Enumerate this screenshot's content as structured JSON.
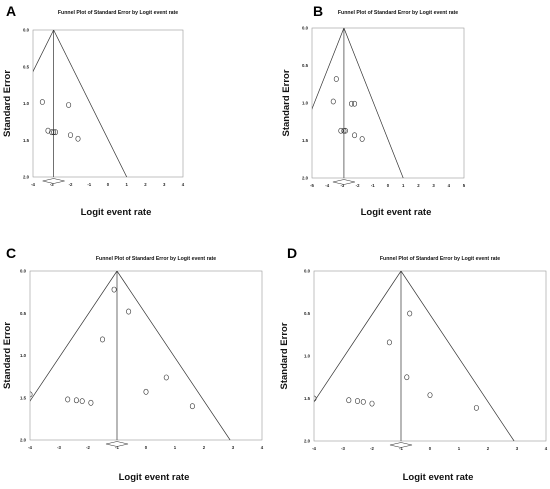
{
  "chart_data": [
    {
      "panel": "A",
      "type": "scatter",
      "title": "Funnel Plot of Standard Error by Logit event rate",
      "xlabel": "Logit event rate",
      "ylabel": "Standard Error",
      "xlim": [
        -4,
        4
      ],
      "ylim": [
        0,
        2
      ],
      "x_ticks": [
        "-4",
        "-3",
        "-2",
        "-1",
        "0",
        "1",
        "2",
        "3",
        "4"
      ],
      "y_ticks": [
        "0.0",
        "0.5",
        "1.0",
        "1.5",
        "2.0"
      ],
      "y_inverted": true,
      "summary_estimate": -2.9,
      "funnel_apex": [
        -2.9,
        0
      ],
      "funnel_left_at_bottom": -6.8,
      "funnel_right_at_bottom": 1.0,
      "points": [
        {
          "x": -3.5,
          "y": 0.98
        },
        {
          "x": -2.1,
          "y": 1.02
        },
        {
          "x": -3.2,
          "y": 1.37
        },
        {
          "x": -3.0,
          "y": 1.39
        },
        {
          "x": -2.9,
          "y": 1.39
        },
        {
          "x": -2.8,
          "y": 1.39
        },
        {
          "x": -2.0,
          "y": 1.43
        },
        {
          "x": -1.6,
          "y": 1.48
        }
      ],
      "grid": false
    },
    {
      "panel": "B",
      "type": "scatter",
      "title": "Funnel Plot of Standard Error by Logit event rate",
      "xlabel": "Logit event rate",
      "ylabel": "Standard Error",
      "xlim": [
        -5,
        5
      ],
      "ylim": [
        0,
        2
      ],
      "x_ticks": [
        "-5",
        "-4",
        "-3",
        "-2",
        "-1",
        "0",
        "1",
        "2",
        "3",
        "4",
        "5"
      ],
      "y_ticks": [
        "0.0",
        "0.5",
        "1.0",
        "1.5",
        "2.0"
      ],
      "y_inverted": true,
      "summary_estimate": -2.9,
      "funnel_apex": [
        -2.9,
        0
      ],
      "funnel_left_at_bottom": -6.8,
      "funnel_right_at_bottom": 1.0,
      "points": [
        {
          "x": -3.4,
          "y": 0.68
        },
        {
          "x": -3.6,
          "y": 0.98
        },
        {
          "x": -2.4,
          "y": 1.01
        },
        {
          "x": -2.2,
          "y": 1.01
        },
        {
          "x": -3.1,
          "y": 1.37
        },
        {
          "x": -2.9,
          "y": 1.37
        },
        {
          "x": -2.8,
          "y": 1.37
        },
        {
          "x": -2.2,
          "y": 1.43
        },
        {
          "x": -1.7,
          "y": 1.48
        }
      ],
      "grid": false
    },
    {
      "panel": "C",
      "type": "scatter",
      "title": "Funnel Plot of Standard Error by Logit event rate",
      "xlabel": "Logit event rate",
      "ylabel": "Standard Error",
      "xlim": [
        -4,
        4
      ],
      "ylim": [
        0,
        2
      ],
      "x_ticks": [
        "-4",
        "-3",
        "-2",
        "-1",
        "0",
        "1",
        "2",
        "3",
        "4"
      ],
      "y_ticks": [
        "0.0",
        "0.5",
        "1.0",
        "1.5",
        "2.0"
      ],
      "y_inverted": true,
      "summary_estimate": -1.0,
      "funnel_apex": [
        -1.0,
        0
      ],
      "funnel_left_at_bottom": -4.9,
      "funnel_right_at_bottom": 2.9,
      "points": [
        {
          "x": -1.1,
          "y": 0.22
        },
        {
          "x": -0.6,
          "y": 0.48
        },
        {
          "x": -1.5,
          "y": 0.81
        },
        {
          "x": -4.0,
          "y": 1.46
        },
        {
          "x": -2.7,
          "y": 1.52
        },
        {
          "x": -2.4,
          "y": 1.53
        },
        {
          "x": -2.2,
          "y": 1.54
        },
        {
          "x": -1.9,
          "y": 1.56
        },
        {
          "x": 0.0,
          "y": 1.43
        },
        {
          "x": 0.7,
          "y": 1.26
        },
        {
          "x": 1.6,
          "y": 1.6
        }
      ],
      "grid": false
    },
    {
      "panel": "D",
      "type": "scatter",
      "title": "Funnel Plot of Standard Error by Logit event rate",
      "xlabel": "Logit event rate",
      "ylabel": "Standard Error",
      "xlim": [
        -4,
        4
      ],
      "ylim": [
        0,
        2
      ],
      "x_ticks": [
        "-4",
        "-3",
        "-2",
        "-1",
        "0",
        "1",
        "2",
        "3",
        "4"
      ],
      "y_ticks": [
        "0.0",
        "0.5",
        "1.0",
        "1.5",
        "2.0"
      ],
      "y_inverted": true,
      "summary_estimate": -1.0,
      "funnel_apex": [
        -1.0,
        0
      ],
      "funnel_left_at_bottom": -4.9,
      "funnel_right_at_bottom": 2.9,
      "points": [
        {
          "x": -0.7,
          "y": 0.5
        },
        {
          "x": -1.4,
          "y": 0.84
        },
        {
          "x": -0.8,
          "y": 1.25
        },
        {
          "x": -4.0,
          "y": 1.5
        },
        {
          "x": -2.8,
          "y": 1.52
        },
        {
          "x": -2.5,
          "y": 1.53
        },
        {
          "x": -2.3,
          "y": 1.54
        },
        {
          "x": -2.0,
          "y": 1.56
        },
        {
          "x": 0.0,
          "y": 1.46
        },
        {
          "x": 1.6,
          "y": 1.61
        }
      ],
      "grid": false
    }
  ],
  "style": {
    "line_color": "#333333",
    "marker_color": "#333333",
    "frame_color": "#999999",
    "background": "#ffffff"
  }
}
